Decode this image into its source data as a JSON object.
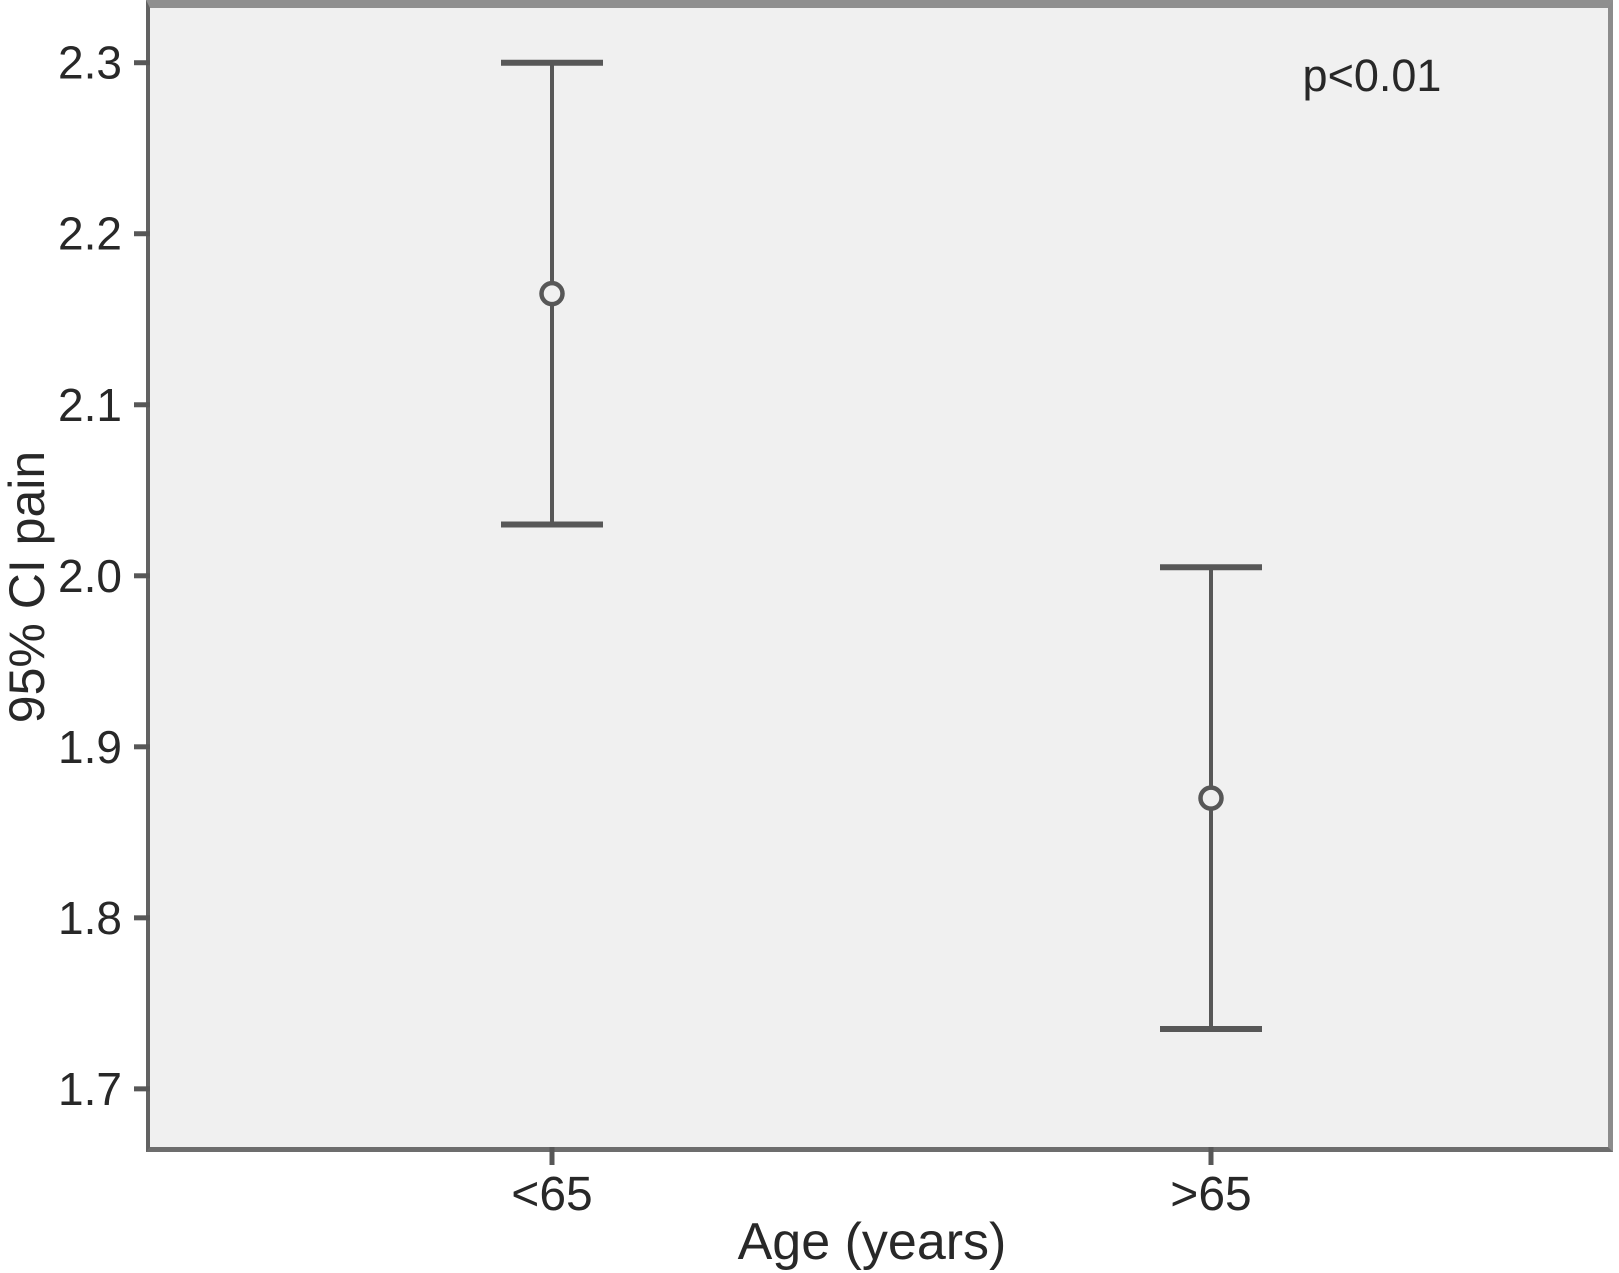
{
  "chart_data": {
    "type": "errorbar",
    "title": "",
    "xlabel": "Age (years)",
    "ylabel": "95% CI pain",
    "annotation": "p<0.01",
    "categories": [
      "<65",
      ">65"
    ],
    "points": [
      {
        "category": "<65",
        "mean": 2.165,
        "ci_lower": 2.03,
        "ci_upper": 2.3
      },
      {
        "category": ">65",
        "mean": 1.87,
        "ci_lower": 1.735,
        "ci_upper": 2.005
      }
    ],
    "yticks": [
      2.3,
      2.2,
      2.1,
      2.0,
      1.9,
      1.8,
      1.7
    ],
    "ylim": [
      1.666,
      2.332
    ],
    "grid": false,
    "legend": false,
    "marker": "open-circle",
    "colors": {
      "plot_bg": "#f0f0f0",
      "marks": "#575757",
      "text": "#282828",
      "frame": "#8f8f8f"
    }
  }
}
